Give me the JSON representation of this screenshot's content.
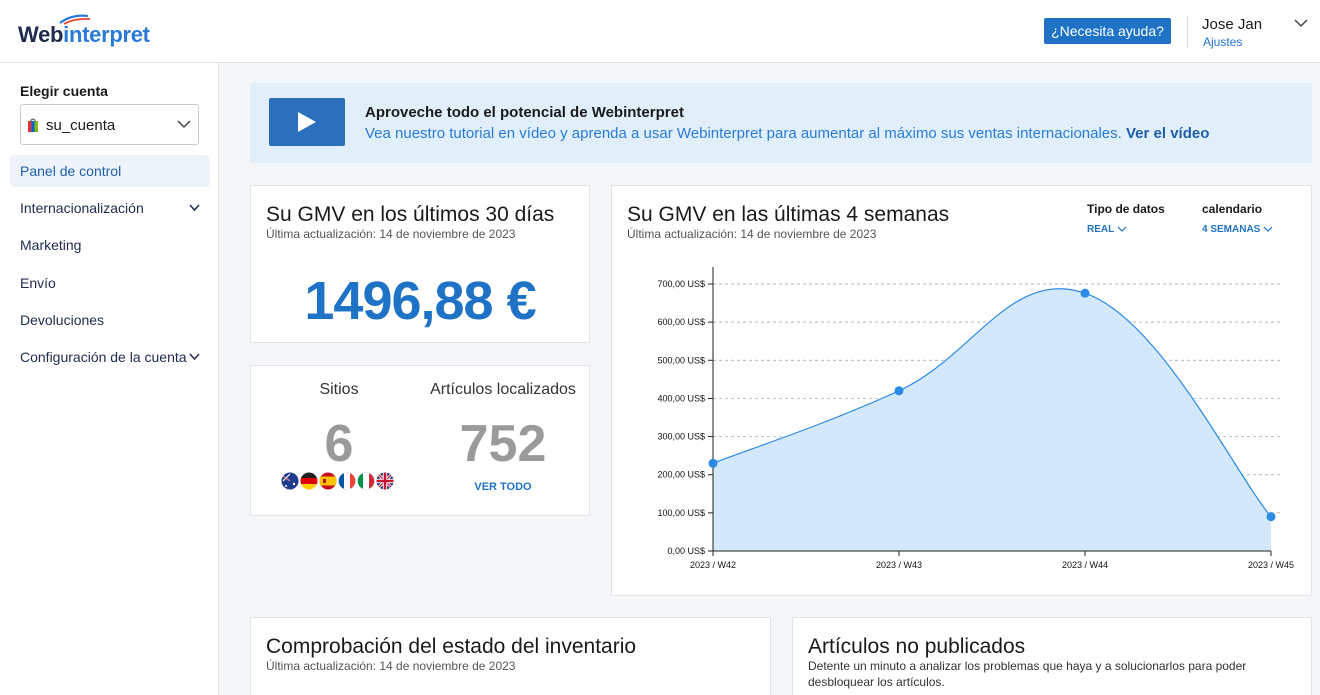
{
  "header": {
    "logo_part1": "Web",
    "logo_part2": "interpret",
    "help_button": "¿Necesita ayuda?",
    "user_name": "Jose Jan",
    "user_settings": "Ajustes"
  },
  "sidebar": {
    "account_label": "Elegir cuenta",
    "account_value": "su_cuenta",
    "items": [
      {
        "label": "Panel de control",
        "active": true
      },
      {
        "label": "Internacionalización",
        "expandable": true
      },
      {
        "label": "Marketing"
      },
      {
        "label": "Envío"
      },
      {
        "label": "Devoluciones"
      },
      {
        "label": "Configuración de la cuenta",
        "expandable": true
      }
    ]
  },
  "banner": {
    "title": "Aproveche todo el potencial de Webinterpret",
    "text": "Vea nuestro tutorial en vídeo y aprenda a usar Webinterpret para aumentar al máximo sus ventas internacionales.",
    "link": "Ver el vídeo"
  },
  "gmv30": {
    "title": "Su GMV en los últimos 30 días",
    "updated": "Última actualización: 14 de noviembre de 2023",
    "value": "1496,88 €"
  },
  "stats": {
    "sites_label": "Sitios",
    "sites_value": "6",
    "items_label": "Artículos localizados",
    "items_value": "752",
    "see_all": "VER TODO",
    "flags": [
      "australia",
      "germany",
      "spain",
      "france",
      "italy",
      "united-kingdom"
    ]
  },
  "gmv4w": {
    "title": "Su GMV en las últimas 4 semanas",
    "updated": "Última actualización: 14 de noviembre de 2023",
    "data_type_label": "Tipo de datos",
    "data_type_value": "REAL",
    "calendar_label": "calendario",
    "calendar_value": "4 SEMANAS"
  },
  "chart_data": {
    "type": "area",
    "categories": [
      "2023 / W42",
      "2023 / W43",
      "2023 / W44",
      "2023 / W45"
    ],
    "series": [
      {
        "values": [
          230,
          420,
          676,
          90
        ]
      }
    ],
    "yticks": [
      "0,00 US$",
      "100,00 US$",
      "200,00 US$",
      "300,00 US$",
      "400,00 US$",
      "500,00 US$",
      "600,00 US$",
      "700,00 US$"
    ],
    "ylim": [
      0,
      700
    ],
    "grid": true,
    "color": "#2a8ae6",
    "fill": "#d3e8fb"
  },
  "inventory": {
    "title": "Comprobación del estado del inventario",
    "updated": "Última actualización: 14 de noviembre de 2023"
  },
  "unpublished": {
    "title": "Artículos no publicados",
    "description": "Detente un minuto a analizar los problemas que haya y a solucionarlos para poder desbloquear los artículos."
  }
}
